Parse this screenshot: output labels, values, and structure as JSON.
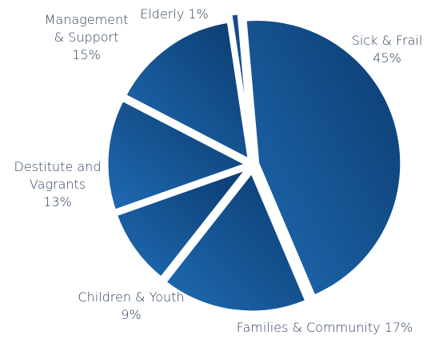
{
  "chart_data": {
    "type": "pie",
    "title": "",
    "slices": [
      {
        "name": "Sick & Frail",
        "label_lines": [
          "Sick & Frail",
          "45%"
        ],
        "value": 45
      },
      {
        "name": "Families & Community",
        "label_lines": [
          "Families & Community 17%"
        ],
        "value": 17
      },
      {
        "name": "Children & Youth",
        "label_lines": [
          "Children & Youth",
          "9%"
        ],
        "value": 9
      },
      {
        "name": "Destitute and Vagrants",
        "label_lines": [
          "Destitute and",
          "Vagrants",
          "13%"
        ],
        "value": 13
      },
      {
        "name": "Management & Support",
        "label_lines": [
          "Management",
          "& Support",
          "15%"
        ],
        "value": 15
      },
      {
        "name": "Elderly",
        "label_lines": [
          "Elderly 1%"
        ],
        "value": 1
      }
    ],
    "colors": {
      "gradient_light": "#1f6bb3",
      "gradient_dark": "#0b3a6e",
      "label_text": "#2b3f5a",
      "gap": "#ffffff"
    }
  }
}
